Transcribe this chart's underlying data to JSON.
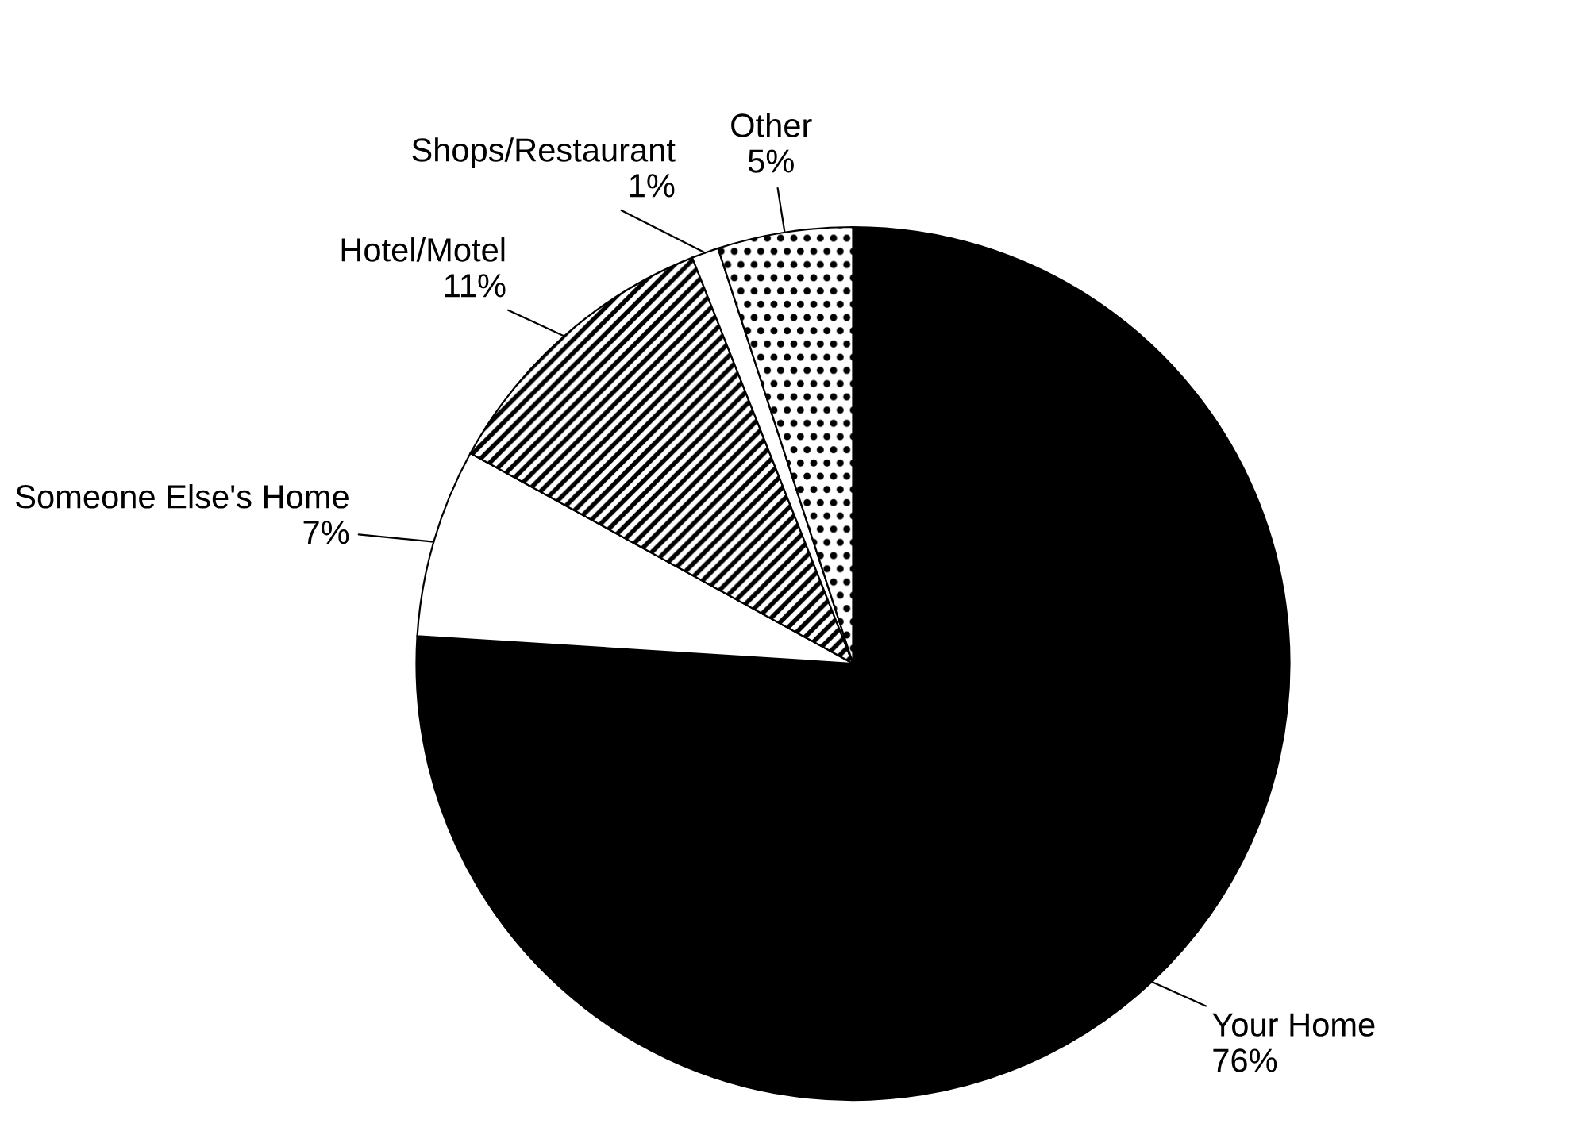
{
  "chart_data": {
    "type": "pie",
    "categories": [
      "Your Home",
      "Someone Else's Home",
      "Hotel/Motel",
      "Shops/Restaurant",
      "Other"
    ],
    "values": [
      76,
      7,
      11,
      1,
      5
    ],
    "value_labels": [
      "76%",
      "7%",
      "11%",
      "1%",
      "5%"
    ],
    "colors": [
      "#000000",
      "#ffffff",
      "#ffffff",
      "#ffffff",
      "#ffffff"
    ]
  }
}
